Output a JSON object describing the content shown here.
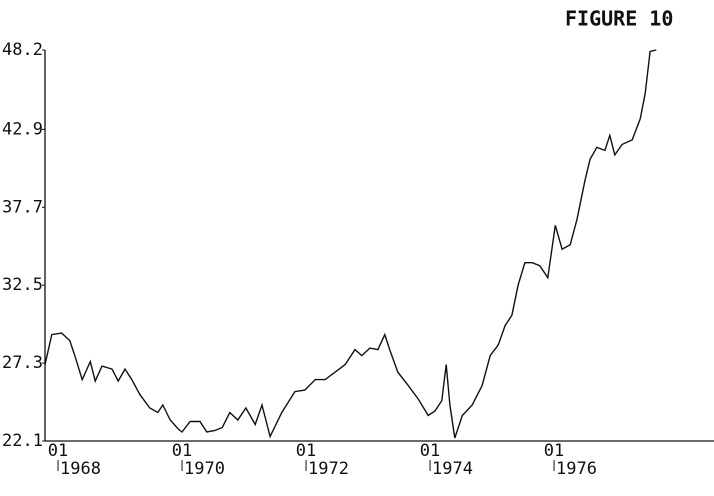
{
  "chart_data": {
    "type": "line",
    "title": "FIGURE 10",
    "x": [
      1967.79,
      1967.9,
      1968.06,
      1968.19,
      1968.27,
      1968.39,
      1968.52,
      1968.6,
      1968.71,
      1968.87,
      1968.97,
      1969.08,
      1969.19,
      1969.32,
      1969.48,
      1969.61,
      1969.69,
      1969.81,
      1969.94,
      1970.0,
      1970.13,
      1970.29,
      1970.4,
      1970.53,
      1970.65,
      1970.77,
      1970.9,
      1971.03,
      1971.18,
      1971.29,
      1971.42,
      1971.61,
      1971.82,
      1971.98,
      1972.15,
      1972.31,
      1972.47,
      1972.63,
      1972.79,
      1972.9,
      1973.03,
      1973.16,
      1973.27,
      1973.35,
      1973.48,
      1973.65,
      1973.81,
      1973.97,
      1974.08,
      1974.19,
      1974.26,
      1974.32,
      1974.4,
      1974.52,
      1974.68,
      1974.84,
      1974.97,
      1975.1,
      1975.21,
      1975.32,
      1975.42,
      1975.53,
      1975.65,
      1975.77,
      1975.9,
      1976.02,
      1976.13,
      1976.26,
      1976.37,
      1976.5,
      1976.58,
      1976.69,
      1976.82,
      1976.9,
      1976.98,
      1977.1,
      1977.26,
      1977.39,
      1977.47,
      1977.55,
      1977.65
    ],
    "series": [
      {
        "color": "#111111",
        "values": [
          27.2,
          29.2,
          29.3,
          28.8,
          27.8,
          26.2,
          27.4,
          26.1,
          27.1,
          26.9,
          26.1,
          26.9,
          26.2,
          25.2,
          24.3,
          24.0,
          24.5,
          23.5,
          22.9,
          22.7,
          23.4,
          23.4,
          22.7,
          22.8,
          23.0,
          24.0,
          23.5,
          24.3,
          23.2,
          24.5,
          22.4,
          24.0,
          25.4,
          25.5,
          26.2,
          26.2,
          26.7,
          27.2,
          28.2,
          27.8,
          28.3,
          28.2,
          29.2,
          28.2,
          26.7,
          25.8,
          24.9,
          23.8,
          24.1,
          24.8,
          27.2,
          24.5,
          22.3,
          23.8,
          24.5,
          25.8,
          27.8,
          28.5,
          29.8,
          30.5,
          32.5,
          34.0,
          34.0,
          33.8,
          33.0,
          36.5,
          34.9,
          35.2,
          36.9,
          39.5,
          40.9,
          41.7,
          41.5,
          42.5,
          41.2,
          41.9,
          42.2,
          43.6,
          45.3,
          48.1,
          48.2
        ]
      }
    ],
    "xlim": [
      1967.79,
      1978.58
    ],
    "xticks": [
      {
        "value": 1968,
        "label": "1968",
        "month": "01"
      },
      {
        "value": 1970,
        "label": "1970",
        "month": "01"
      },
      {
        "value": 1972,
        "label": "1972",
        "month": "01"
      },
      {
        "value": 1974,
        "label": "1974",
        "month": "01"
      },
      {
        "value": 1976,
        "label": "1976",
        "month": "01"
      }
    ],
    "ylim": [
      22.1,
      48.2
    ],
    "yticks": [
      22.1,
      27.3,
      32.5,
      37.7,
      42.9,
      48.2
    ]
  }
}
